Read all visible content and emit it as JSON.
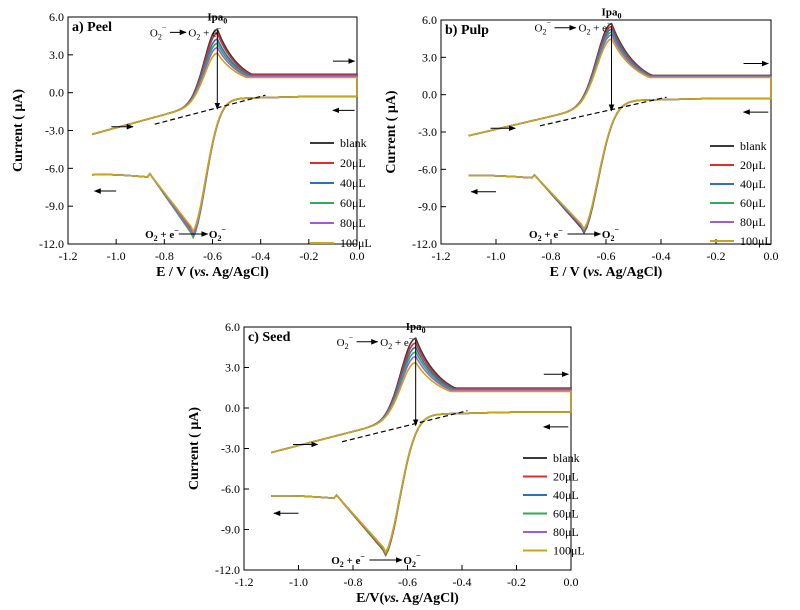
{
  "chart_data": [
    {
      "type": "line",
      "title": "a) Peel",
      "xlabel_main": "E / V (",
      "xlabel_italic": "vs.",
      "xlabel_tail": " Ag/AgCl)",
      "ylabel": "Current ( μA)",
      "xlim": [
        -1.2,
        0.0
      ],
      "ylim": [
        -12.0,
        6.0
      ],
      "xticks": [
        "-1.2",
        "-1.0",
        "-0.8",
        "-0.6",
        "-0.4",
        "-0.2",
        "0.0"
      ],
      "yticks": [
        "6.0",
        "3.0",
        "0.0",
        "-3.0",
        "-6.0",
        "-9.0",
        "-12.0"
      ],
      "series": [
        {
          "name": "blank",
          "color": "#3a3a3a",
          "ox_peak": [
            -0.58,
            5.1
          ],
          "red_peak": [
            -0.69,
            -10.8
          ]
        },
        {
          "name": "20μL",
          "color": "#d9302c",
          "ox_peak": [
            -0.58,
            4.8
          ],
          "red_peak": [
            -0.69,
            -10.7
          ]
        },
        {
          "name": "40μL",
          "color": "#2e6fbf",
          "ox_peak": [
            -0.58,
            4.4
          ],
          "red_peak": [
            -0.69,
            -11.0
          ]
        },
        {
          "name": "60μL",
          "color": "#2faa5a",
          "ox_peak": [
            -0.58,
            4.1
          ],
          "red_peak": [
            -0.69,
            -11.1
          ]
        },
        {
          "name": "80μL",
          "color": "#a05bd6",
          "ox_peak": [
            -0.58,
            3.8
          ],
          "red_peak": [
            -0.69,
            -10.9
          ]
        },
        {
          "name": "100μL",
          "color": "#c9a619",
          "ox_peak": [
            -0.58,
            3.4
          ],
          "red_peak": [
            -0.69,
            -10.6
          ]
        }
      ],
      "annotations": {
        "peak_label": "Ipa",
        "peak_sub": "0",
        "ox_text_left": "O",
        "ox_text_right": "O",
        "ox_text_tail": " + e",
        "red_text_left": "O",
        "red_text_mid": " + e",
        "red_text_right": "O"
      }
    },
    {
      "type": "line",
      "title": "b) Pulp",
      "xlabel_main": "E / V (",
      "xlabel_italic": "vs.",
      "xlabel_tail": " Ag/AgCl)",
      "ylabel": "Current ( μA)",
      "xlim": [
        -1.2,
        0.0
      ],
      "ylim": [
        -12.0,
        6.0
      ],
      "xticks": [
        "-1.2",
        "-1.0",
        "-0.8",
        "-0.6",
        "-0.4",
        "-0.2",
        "0.0"
      ],
      "yticks": [
        "6.0",
        "3.0",
        "0.0",
        "-3.0",
        "-6.0",
        "-9.0",
        "-12.0"
      ],
      "series": [
        {
          "name": "blank",
          "color": "#3a3a3a",
          "ox_peak": [
            -0.58,
            5.7
          ],
          "red_peak": [
            -0.69,
            -10.7
          ]
        },
        {
          "name": "20μL",
          "color": "#d9302c",
          "ox_peak": [
            -0.58,
            5.5
          ],
          "red_peak": [
            -0.69,
            -10.6
          ]
        },
        {
          "name": "40μL",
          "color": "#2e6fbf",
          "ox_peak": [
            -0.58,
            5.3
          ],
          "red_peak": [
            -0.69,
            -10.6
          ]
        },
        {
          "name": "60μL",
          "color": "#2faa5a",
          "ox_peak": [
            -0.58,
            5.1
          ],
          "red_peak": [
            -0.69,
            -10.5
          ]
        },
        {
          "name": "80μL",
          "color": "#a05bd6",
          "ox_peak": [
            -0.58,
            4.9
          ],
          "red_peak": [
            -0.69,
            -10.5
          ]
        },
        {
          "name": "100μL",
          "color": "#c9a619",
          "ox_peak": [
            -0.58,
            4.6
          ],
          "red_peak": [
            -0.69,
            -10.4
          ]
        }
      ],
      "annotations": {
        "peak_label": "Ipa",
        "peak_sub": "0",
        "ox_text_left": "O",
        "ox_text_right": "O",
        "ox_text_tail": " + e",
        "red_text_left": "O",
        "red_text_mid": " + e",
        "red_text_right": "O"
      }
    },
    {
      "type": "line",
      "title": "c) Seed",
      "xlabel_main": "E/V(",
      "xlabel_italic": "vs.",
      "xlabel_tail": " Ag/AgCl)",
      "ylabel": "Current ( μA)",
      "xlim": [
        -1.2,
        0.0
      ],
      "ylim": [
        -12.0,
        6.0
      ],
      "xticks": [
        "-1.2",
        "-1.0",
        "-0.8",
        "-0.6",
        "-0.4",
        "-0.2",
        "0.0"
      ],
      "yticks": [
        "6.0",
        "3.0",
        "0.0",
        "-3.0",
        "-6.0",
        "-9.0",
        "-12.0"
      ],
      "series": [
        {
          "name": "blank",
          "color": "#3a3a3a",
          "ox_peak": [
            -0.57,
            5.2
          ],
          "red_peak": [
            -0.69,
            -10.5
          ]
        },
        {
          "name": "20μL",
          "color": "#d9302c",
          "ox_peak": [
            -0.57,
            4.9
          ],
          "red_peak": [
            -0.69,
            -10.5
          ]
        },
        {
          "name": "40μL",
          "color": "#2e6fbf",
          "ox_peak": [
            -0.57,
            4.6
          ],
          "red_peak": [
            -0.69,
            -10.4
          ]
        },
        {
          "name": "60μL",
          "color": "#2faa5a",
          "ox_peak": [
            -0.57,
            4.3
          ],
          "red_peak": [
            -0.69,
            -10.4
          ]
        },
        {
          "name": "80μL",
          "color": "#a05bd6",
          "ox_peak": [
            -0.57,
            4.0
          ],
          "red_peak": [
            -0.69,
            -10.3
          ]
        },
        {
          "name": "100μL",
          "color": "#c9a619",
          "ox_peak": [
            -0.57,
            3.6
          ],
          "red_peak": [
            -0.69,
            -10.3
          ]
        }
      ],
      "annotations": {
        "peak_label": "Ipa",
        "peak_sub": "0",
        "ox_text_left": "O",
        "ox_text_right": "O",
        "ox_text_tail": " + e",
        "red_text_left": "O",
        "red_text_mid": " + e",
        "red_text_right": "O"
      }
    }
  ]
}
